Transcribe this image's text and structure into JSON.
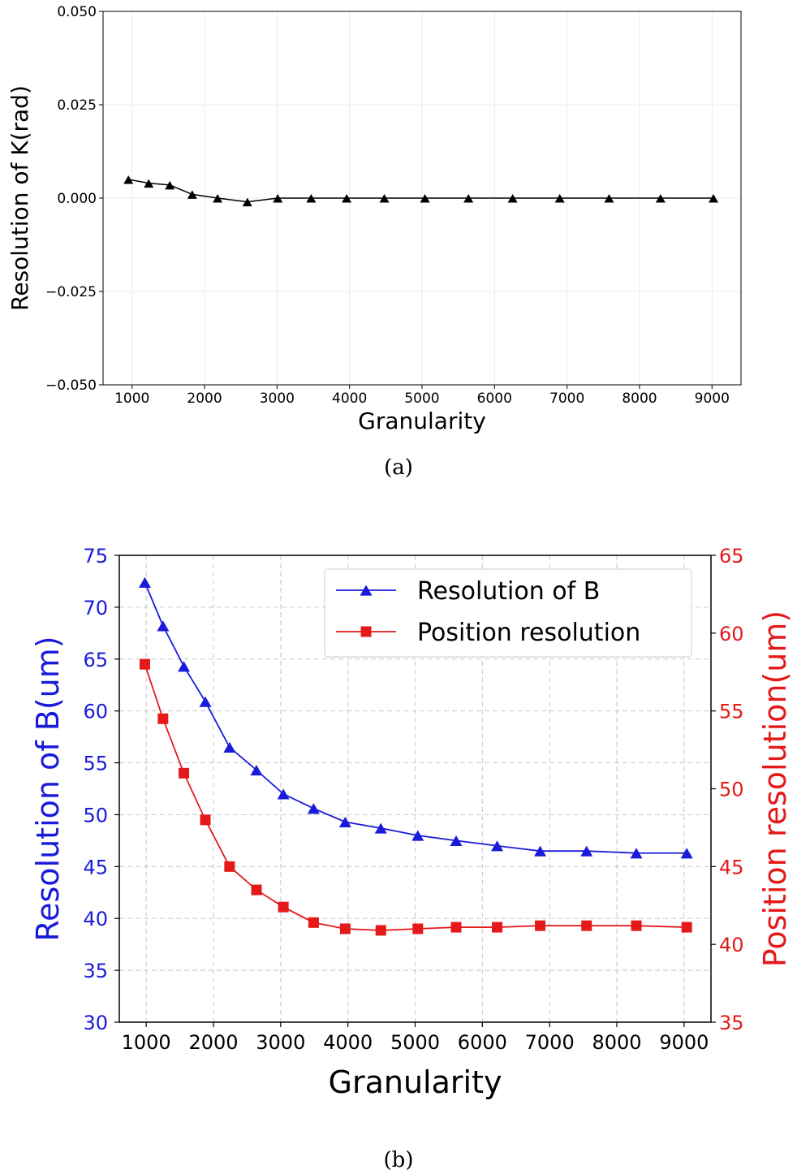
{
  "chart_data": [
    {
      "id": "a",
      "type": "line",
      "caption": "(a)",
      "xlabel": "Granularity",
      "ylabel": "Resolution of K(rad)",
      "xlim": [
        600,
        9400
      ],
      "ylim": [
        -0.05,
        0.05
      ],
      "xticks": [
        1000,
        2000,
        3000,
        4000,
        5000,
        6000,
        7000,
        8000,
        9000
      ],
      "xtick_labels": [
        "1000",
        "2000",
        "3000",
        "4000",
        "5000",
        "6000",
        "7000",
        "8000",
        "9000"
      ],
      "yticks": [
        -0.05,
        -0.025,
        0.0,
        0.025,
        0.05
      ],
      "ytick_labels": [
        "−0.050",
        "−0.025",
        "0.000",
        "0.025",
        "0.050"
      ],
      "grid": true,
      "series": [
        {
          "marker": "triangle",
          "color": "#000000",
          "x": [
            950,
            1230,
            1520,
            1830,
            2180,
            2590,
            3010,
            3470,
            3960,
            4480,
            5040,
            5640,
            6250,
            6900,
            7580,
            8290,
            9020
          ],
          "y": [
            0.005,
            0.004,
            0.0035,
            0.001,
            0.0,
            -0.001,
            0.0,
            0.0,
            0.0,
            0.0,
            0.0,
            0.0,
            0.0,
            0.0,
            0.0,
            0.0,
            0.0
          ]
        }
      ]
    },
    {
      "id": "b",
      "type": "line",
      "caption": "(b)",
      "xlabel": "Granularity",
      "ylabel_left": "Resolution of B(um)",
      "ylabel_right": "Position resolution(um)",
      "xlim": [
        600,
        9400
      ],
      "ylim_left": [
        30,
        75
      ],
      "ylim_right": [
        35,
        65
      ],
      "xticks": [
        1000,
        2000,
        3000,
        4000,
        5000,
        6000,
        7000,
        8000,
        9000
      ],
      "xtick_labels": [
        "1000",
        "2000",
        "3000",
        "4000",
        "5000",
        "6000",
        "7000",
        "8000",
        "9000"
      ],
      "yticks_left": [
        30,
        35,
        40,
        45,
        50,
        55,
        60,
        65,
        70,
        75
      ],
      "yticks_right": [
        35,
        40,
        45,
        50,
        55,
        60,
        65
      ],
      "grid": true,
      "legend_position": "top-right",
      "colors": {
        "left_axis": "#1a1adb",
        "right_axis": "#e41a1a"
      },
      "series": [
        {
          "name": "Resolution of B",
          "axis": "left",
          "marker": "triangle",
          "color": "#1a1adb",
          "x": [
            980,
            1250,
            1560,
            1880,
            2240,
            2640,
            3040,
            3490,
            3960,
            4490,
            5040,
            5610,
            6220,
            6860,
            7550,
            8290,
            9040
          ],
          "y": [
            72.4,
            68.2,
            64.3,
            60.9,
            56.5,
            54.3,
            52.0,
            50.6,
            49.3,
            48.7,
            48.0,
            47.5,
            47.0,
            46.5,
            46.5,
            46.3,
            46.3
          ]
        },
        {
          "name": "Position resolution",
          "axis": "right",
          "marker": "square",
          "color": "#e41a1a",
          "x": [
            980,
            1250,
            1560,
            1880,
            2240,
            2640,
            3040,
            3490,
            3960,
            4490,
            5040,
            5610,
            6220,
            6860,
            7550,
            8290,
            9040
          ],
          "y": [
            58.0,
            54.5,
            51.0,
            48.0,
            45.0,
            43.5,
            42.4,
            41.4,
            41.0,
            40.9,
            41.0,
            41.1,
            41.1,
            41.2,
            41.2,
            41.2,
            41.1
          ]
        }
      ]
    }
  ]
}
